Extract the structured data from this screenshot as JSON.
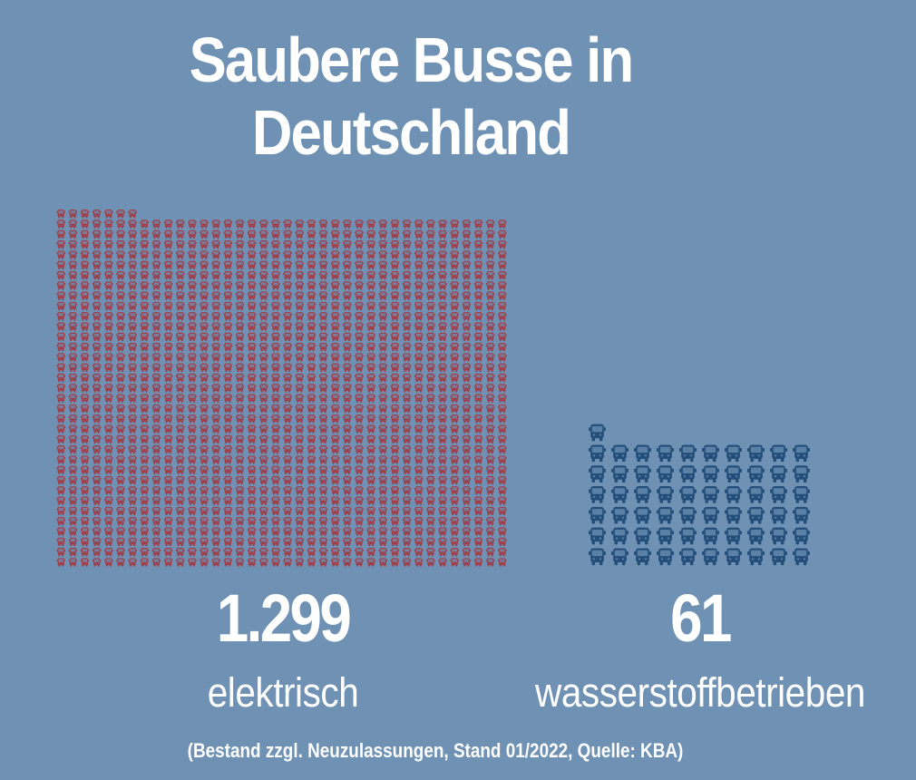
{
  "title": {
    "line1": "Saubere Busse in",
    "line2": "Deutschland"
  },
  "chart_data": {
    "type": "pictogram",
    "title": "Saubere Busse in Deutschland",
    "unit": "1 Symbol = 1 Bus",
    "series": [
      {
        "name": "elektrisch",
        "value": 1299,
        "value_label": "1.299",
        "color": "#a23a44",
        "icon": "bus-icon"
      },
      {
        "name": "wasserstoffbetrieben",
        "value": 61,
        "value_label": "61",
        "color": "#234e7a",
        "icon": "bus-icon"
      }
    ],
    "footnote": "(Bestand zzgl. Neuzulassungen, Stand 01/2022, Quelle: KBA)"
  },
  "colors": {
    "background": "#6f92b4",
    "electric": "#a23a44",
    "hydrogen": "#234e7a",
    "text": "#ffffff"
  }
}
